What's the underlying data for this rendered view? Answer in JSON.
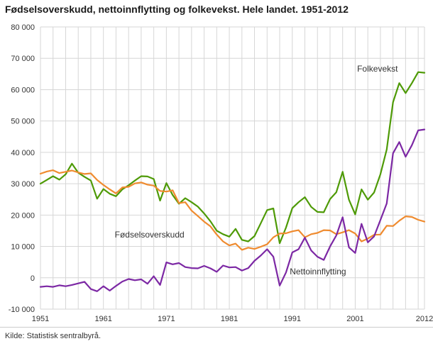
{
  "title": "Fødselsoverskudd, nettoinnflytting og folkevekst. Hele landet. 1951-2012",
  "source": "Kilde: Statistisk sentralbyrå.",
  "chart_data": {
    "type": "line",
    "title": "Fødselsoverskudd, nettoinnflytting og folkevekst. Hele landet. 1951-2012",
    "xlabel": "",
    "ylabel": "",
    "x_start": 1951,
    "x_end": 2012,
    "x_grid_step": 2,
    "ylim": [
      -10000,
      80000
    ],
    "y_tick_step": 10000,
    "grid": "both",
    "grid_color": "#d6d6d6",
    "legend_position": "inline-annotations",
    "x_ticks": [
      {
        "v": 1951,
        "l": "1951"
      },
      {
        "v": 1961,
        "l": "1961"
      },
      {
        "v": 1971,
        "l": "1971"
      },
      {
        "v": 1981,
        "l": "1981"
      },
      {
        "v": 1991,
        "l": "1991"
      },
      {
        "v": 2001,
        "l": "2001"
      },
      {
        "v": 2012,
        "l": "2012"
      }
    ],
    "y_ticks": [
      {
        "v": 80000,
        "l": "80 000"
      },
      {
        "v": 70000,
        "l": "70 000"
      },
      {
        "v": 60000,
        "l": "60 000"
      },
      {
        "v": 50000,
        "l": "50 000"
      },
      {
        "v": 40000,
        "l": "40 000"
      },
      {
        "v": 30000,
        "l": "30 000"
      },
      {
        "v": 20000,
        "l": "20 000"
      },
      {
        "v": 10000,
        "l": "10 000"
      },
      {
        "v": 0,
        "l": "0"
      },
      {
        "v": -10000,
        "l": "-10 000"
      }
    ],
    "annotations": [
      {
        "text": "Folkevekst",
        "year": 2001.3,
        "value": 66500
      },
      {
        "text": "Fødselsoverskudd",
        "year": 1962.8,
        "value": 13600
      },
      {
        "text": "Nettoinnflytting",
        "year": 1990.6,
        "value": 1800
      }
    ],
    "series": [
      {
        "name": "Folkevekst",
        "color": "#4e9a06",
        "values": [
          30000,
          31200,
          32400,
          31300,
          33000,
          36400,
          33500,
          32200,
          31000,
          25200,
          28300,
          26800,
          26000,
          28200,
          29500,
          31000,
          32400,
          32300,
          31500,
          24600,
          30200,
          26400,
          23600,
          25400,
          24100,
          22700,
          20500,
          18000,
          15000,
          13900,
          13100,
          15600,
          12100,
          11600,
          13300,
          17400,
          21600,
          22100,
          11000,
          16000,
          22200,
          24100,
          25700,
          22600,
          21000,
          20900,
          25100,
          27300,
          33800,
          24900,
          20200,
          28200,
          24900,
          27200,
          33000,
          40900,
          56000,
          62100,
          58900,
          62100,
          65600,
          65400
        ]
      },
      {
        "name": "Fødselsoverskudd",
        "color": "#ef8b2f",
        "values": [
          33200,
          33900,
          34300,
          33400,
          33800,
          34200,
          33600,
          33100,
          33300,
          31200,
          29600,
          28200,
          26900,
          28800,
          29000,
          30100,
          30400,
          29700,
          29400,
          27700,
          27500,
          27900,
          23800,
          24100,
          21400,
          19700,
          17900,
          16400,
          13800,
          11600,
          10300,
          10900,
          8900,
          9600,
          9200,
          9900,
          10700,
          12900,
          14100,
          14200,
          14800,
          15200,
          12900,
          13900,
          14300,
          15200,
          15100,
          13900,
          14500,
          15200,
          14100,
          11600,
          12500,
          13700,
          13800,
          16600,
          16500,
          18200,
          19600,
          19400,
          18500,
          17900
        ]
      },
      {
        "name": "Nettoinnflytting",
        "color": "#7c28a4",
        "values": [
          -2900,
          -2700,
          -2900,
          -2400,
          -2700,
          -2300,
          -1800,
          -1300,
          -3600,
          -4300,
          -2700,
          -4100,
          -2600,
          -1200,
          -400,
          -800,
          -500,
          -1900,
          500,
          -2300,
          4900,
          4300,
          4700,
          3400,
          3100,
          3000,
          3800,
          3000,
          1900,
          3900,
          3300,
          3400,
          2300,
          3100,
          5400,
          7100,
          9100,
          6700,
          -2500,
          1700,
          8100,
          9100,
          12800,
          8700,
          6700,
          5700,
          10000,
          13500,
          19300,
          9700,
          7900,
          17200,
          11300,
          13200,
          18400,
          23700,
          39700,
          43300,
          38600,
          42300,
          47000,
          47300
        ]
      }
    ]
  }
}
